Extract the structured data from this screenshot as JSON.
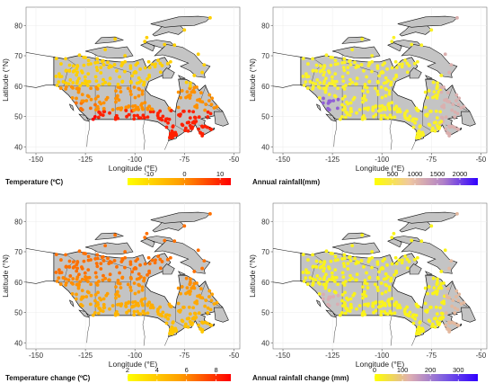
{
  "figure": {
    "x_axis_title": "Longitude (°E)",
    "y_axis_title": "Latitude (°N)",
    "x_ticks": [
      "-150",
      "-125",
      "-100",
      "-75",
      "-50"
    ],
    "y_ticks": [
      "80",
      "70",
      "60",
      "50",
      "40"
    ],
    "x_range": [
      -155,
      -47
    ],
    "y_range": [
      38,
      86
    ]
  },
  "panels": [
    {
      "id": "temperature",
      "legend_title": "Temperature (ºC)",
      "legend_ticks": [
        "-10",
        "0",
        "10"
      ],
      "legend_tick_values": [
        -10,
        0,
        10
      ],
      "legend_range": [
        -16,
        13
      ],
      "colors": [
        "#ffff00",
        "#ffa000",
        "#ff0000"
      ]
    },
    {
      "id": "rainfall",
      "legend_title": "Annual rainfall(mm)",
      "legend_ticks": [
        "500",
        "1000",
        "1500",
        "2000"
      ],
      "legend_tick_values": [
        500,
        1000,
        1500,
        2000
      ],
      "legend_range": [
        100,
        2400
      ],
      "colors": [
        "#ffff00",
        "#f0c8a0",
        "#b080c8",
        "#3000ff"
      ]
    },
    {
      "id": "temperature_change",
      "legend_title": "Temperature change (ºC)",
      "legend_ticks": [
        "2",
        "4",
        "6",
        "8"
      ],
      "legend_tick_values": [
        2,
        4,
        6,
        8
      ],
      "legend_range": [
        2,
        9
      ],
      "colors": [
        "#ffff00",
        "#ffa000",
        "#ff0000"
      ]
    },
    {
      "id": "rainfall_change",
      "legend_title": "Annual rainfall change (mm)",
      "legend_ticks": [
        "0",
        "100",
        "200",
        "300"
      ],
      "legend_tick_values": [
        0,
        100,
        200,
        300
      ],
      "legend_range": [
        0,
        370
      ],
      "colors": [
        "#ffff00",
        "#e0b0b0",
        "#8060e0",
        "#3000ff"
      ]
    }
  ]
}
